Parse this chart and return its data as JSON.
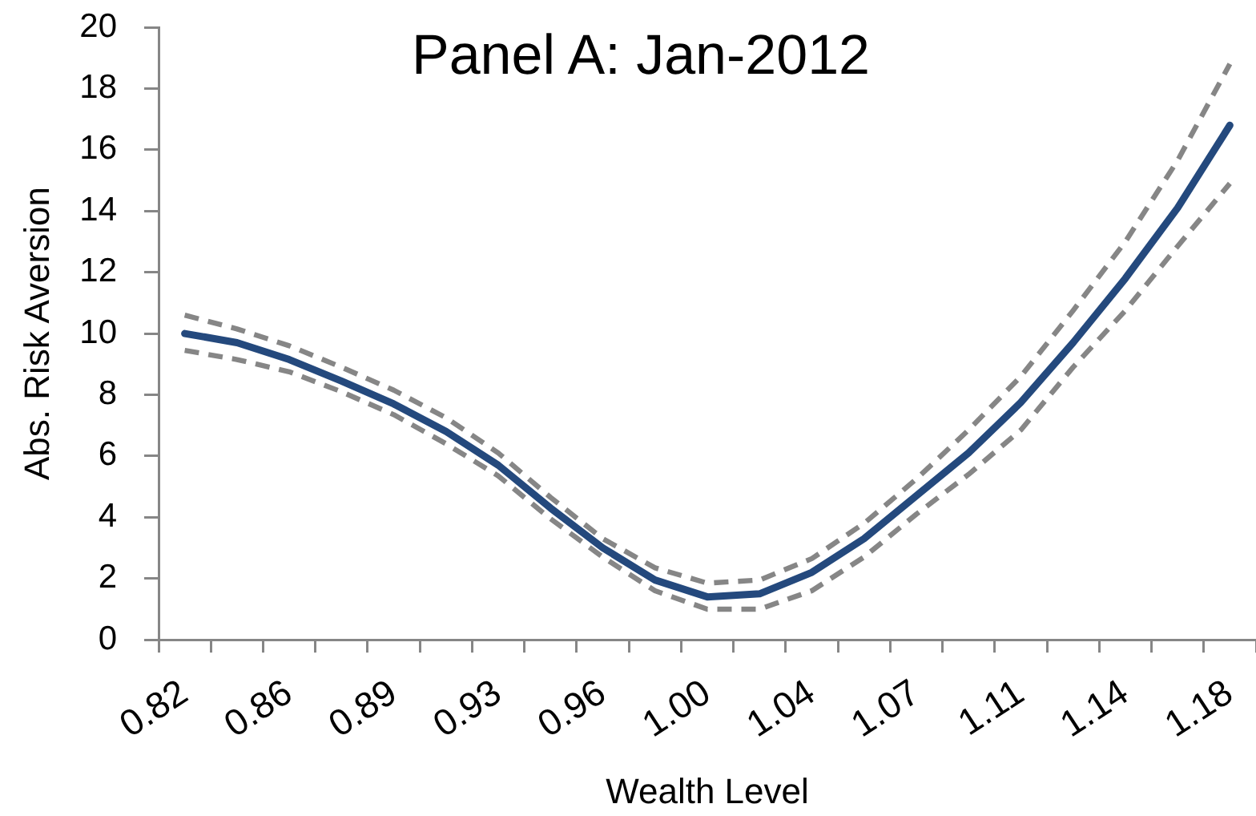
{
  "chart_data": {
    "type": "line",
    "title": "Panel A: Jan-2012",
    "xlabel": "Wealth Level",
    "ylabel": "Abs. Risk Aversion",
    "categories": [
      "0.82",
      null,
      "0.86",
      null,
      "0.89",
      null,
      "0.93",
      null,
      "0.96",
      null,
      "1.00",
      null,
      "1.04",
      null,
      "1.07",
      null,
      "1.11",
      null,
      "1.14",
      null,
      "1.18"
    ],
    "series": [
      {
        "color": "#24497d",
        "line_style": "solid",
        "values": [
          10.0,
          9.7,
          9.15,
          8.45,
          7.7,
          6.8,
          5.7,
          4.3,
          3.0,
          1.95,
          1.4,
          1.5,
          2.2,
          3.3,
          4.7,
          6.1,
          7.75,
          9.7,
          11.8,
          14.1,
          16.8
        ]
      },
      {
        "color": "#868686",
        "line_style": "dashed",
        "values": [
          10.6,
          10.15,
          9.6,
          8.9,
          8.15,
          7.25,
          6.1,
          4.65,
          3.3,
          2.35,
          1.85,
          1.95,
          2.65,
          3.8,
          5.25,
          6.85,
          8.6,
          10.75,
          13.0,
          15.65,
          18.8
        ]
      },
      {
        "color": "#868686",
        "line_style": "dashed",
        "values": [
          9.45,
          9.15,
          8.75,
          8.1,
          7.35,
          6.4,
          5.35,
          3.95,
          2.7,
          1.6,
          1.0,
          1.0,
          1.6,
          2.7,
          4.1,
          5.4,
          6.85,
          8.9,
          10.75,
          12.85,
          14.9
        ]
      }
    ],
    "ylim": [
      0,
      20
    ],
    "yticks": [
      0,
      2,
      4,
      6,
      8,
      10,
      12,
      14,
      16,
      18,
      20
    ],
    "grid": false,
    "legend": false,
    "marker": "none"
  }
}
